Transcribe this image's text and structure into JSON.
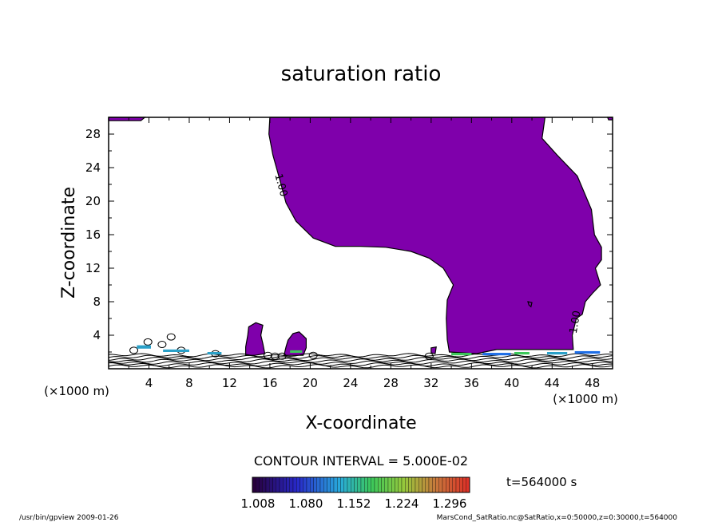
{
  "chart_data": {
    "type": "contour",
    "title": "saturation ratio",
    "xlabel": "X-coordinate",
    "ylabel": "Z-coordinate",
    "x_unit": "(×1000 m)",
    "y_unit": "(×1000 m)",
    "xlim": [
      0,
      50
    ],
    "ylim": [
      0,
      30
    ],
    "x_ticks": [
      4,
      8,
      12,
      16,
      20,
      24,
      28,
      32,
      36,
      40,
      44,
      48
    ],
    "y_ticks": [
      4,
      8,
      12,
      16,
      20,
      24,
      28
    ],
    "contour_interval_text": "CONTOUR INTERVAL = 5.000E-02",
    "contour_labels": [
      "1.00",
      "1.00"
    ],
    "colorbar_ticks": [
      "1.008",
      "1.080",
      "1.152",
      "1.224",
      "1.296"
    ],
    "fill_color": "#7f00ab",
    "time_label": "t=564000 s",
    "regions": {
      "main_cloud": [
        [
          16.0,
          30
        ],
        [
          43.3,
          30
        ],
        [
          43.0,
          27.5
        ],
        [
          44.5,
          25.5
        ],
        [
          46.5,
          23
        ],
        [
          47.9,
          19
        ],
        [
          48.2,
          16
        ],
        [
          48.9,
          14.5
        ],
        [
          48.9,
          13
        ],
        [
          48.3,
          12
        ],
        [
          48.8,
          10
        ],
        [
          48.0,
          9
        ],
        [
          47.3,
          8
        ],
        [
          47.0,
          6.5
        ],
        [
          46.4,
          6
        ],
        [
          46.0,
          4
        ],
        [
          46.1,
          2.3
        ],
        [
          38.5,
          2.3
        ],
        [
          36.5,
          1.8
        ],
        [
          33.8,
          2.0
        ],
        [
          33.6,
          3.5
        ],
        [
          33.5,
          6
        ],
        [
          33.6,
          8.2
        ],
        [
          34.2,
          10
        ],
        [
          33.2,
          12
        ],
        [
          31.8,
          13.2
        ],
        [
          30,
          14
        ],
        [
          27.5,
          14.5
        ],
        [
          25,
          14.6
        ],
        [
          22.5,
          14.6
        ],
        [
          20.3,
          15.6
        ],
        [
          18.6,
          17.6
        ],
        [
          17.6,
          19.8
        ],
        [
          17.0,
          22.5
        ],
        [
          16.3,
          25.5
        ],
        [
          15.9,
          28
        ]
      ],
      "blob_a": [
        [
          13.6,
          1.6
        ],
        [
          14.5,
          1.6
        ],
        [
          15.5,
          1.8
        ],
        [
          15.3,
          3.0
        ],
        [
          15.1,
          4.0
        ],
        [
          15.3,
          5.2
        ],
        [
          14.6,
          5.5
        ],
        [
          13.9,
          5.0
        ],
        [
          13.8,
          4.0
        ],
        [
          13.6,
          2.6
        ]
      ],
      "blob_b": [
        [
          17.4,
          1.6
        ],
        [
          19.3,
          1.6
        ],
        [
          19.6,
          2.5
        ],
        [
          19.6,
          3.6
        ],
        [
          18.9,
          4.4
        ],
        [
          18.3,
          4.2
        ],
        [
          17.8,
          3.4
        ],
        [
          17.6,
          2.6
        ]
      ],
      "top_left_strip": [
        [
          0,
          30
        ],
        [
          3.6,
          30
        ],
        [
          3.2,
          29.6
        ],
        [
          0,
          29.6
        ]
      ],
      "top_right_strip": [
        [
          49.5,
          30
        ],
        [
          50,
          30
        ],
        [
          50,
          29.7
        ],
        [
          49.6,
          29.7
        ]
      ],
      "small_hole": [
        [
          41.6,
          8.0
        ],
        [
          42.0,
          7.9
        ],
        [
          41.9,
          7.4
        ],
        [
          41.7,
          7.6
        ]
      ],
      "wedge": [
        [
          32.0,
          2.5
        ],
        [
          32.5,
          2.6
        ],
        [
          32.4,
          1.8
        ],
        [
          32.0,
          1.9
        ]
      ]
    },
    "hot_spots": [
      {
        "x": 3.5,
        "z": 2.4,
        "w": 1.4,
        "h": 0.4,
        "color": "#2aa0c8"
      },
      {
        "x": 6.7,
        "z": 2.0,
        "w": 2.6,
        "h": 0.3,
        "color": "#2aa0c8"
      },
      {
        "x": 10.5,
        "z": 1.7,
        "w": 1.4,
        "h": 0.3,
        "color": "#2aa0c8"
      },
      {
        "x": 18.6,
        "z": 1.9,
        "w": 1.2,
        "h": 0.3,
        "color": "#3cc85a"
      },
      {
        "x": 35.0,
        "z": 1.6,
        "w": 2.0,
        "h": 0.3,
        "color": "#3cc85a"
      },
      {
        "x": 38.5,
        "z": 1.6,
        "w": 2.8,
        "h": 0.3,
        "color": "#1e6ee6"
      },
      {
        "x": 41.0,
        "z": 1.7,
        "w": 1.5,
        "h": 0.3,
        "color": "#3cc85a"
      },
      {
        "x": 44.5,
        "z": 1.7,
        "w": 2.0,
        "h": 0.3,
        "color": "#2aa0c8"
      },
      {
        "x": 47.5,
        "z": 1.8,
        "w": 2.5,
        "h": 0.3,
        "color": "#1e6ee6"
      }
    ]
  },
  "footer": {
    "left": "/usr/bin/gpview   2009-01-26",
    "right": "MarsCond_SatRatio.nc@SatRatio,x=0:50000,z=0:30000,t=564000"
  }
}
